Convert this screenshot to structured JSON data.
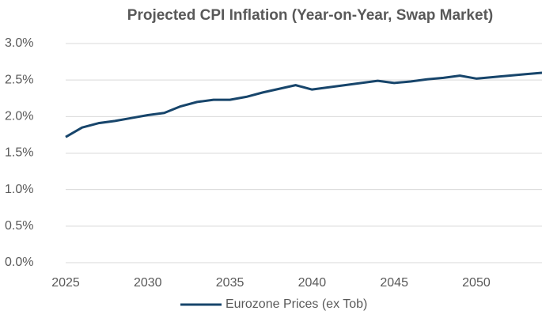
{
  "chart_data": {
    "type": "line",
    "title": "Projected CPI Inflation (Year-on-Year, Swap Market)",
    "x": [
      2025,
      2026,
      2027,
      2028,
      2029,
      2030,
      2031,
      2032,
      2033,
      2034,
      2035,
      2036,
      2037,
      2038,
      2039,
      2040,
      2041,
      2042,
      2043,
      2044,
      2045,
      2046,
      2047,
      2048,
      2049,
      2050,
      2051,
      2052,
      2053,
      2054
    ],
    "series": [
      {
        "name": "Eurozone Prices (ex Tob)",
        "color": "#17456b",
        "values": [
          1.72,
          1.85,
          1.91,
          1.94,
          1.98,
          2.02,
          2.05,
          2.14,
          2.2,
          2.23,
          2.23,
          2.27,
          2.33,
          2.38,
          2.43,
          2.37,
          2.4,
          2.43,
          2.46,
          2.49,
          2.46,
          2.48,
          2.51,
          2.53,
          2.56,
          2.52,
          2.54,
          2.56,
          2.58,
          2.6
        ]
      }
    ],
    "xlim": [
      2025,
      2054
    ],
    "xticks": [
      2025,
      2030,
      2035,
      2040,
      2045,
      2050
    ],
    "ylim": [
      0,
      3
    ],
    "yticks": [
      {
        "value": 0,
        "label": "0.0%"
      },
      {
        "value": 0.5,
        "label": "0.5%"
      },
      {
        "value": 1,
        "label": "1.0%"
      },
      {
        "value": 1.5,
        "label": "1.5%"
      },
      {
        "value": 2,
        "label": "2.0%"
      },
      {
        "value": 2.5,
        "label": "2.5%"
      },
      {
        "value": 3,
        "label": "3.0%"
      }
    ],
    "grid": true,
    "legend": "bottom"
  }
}
